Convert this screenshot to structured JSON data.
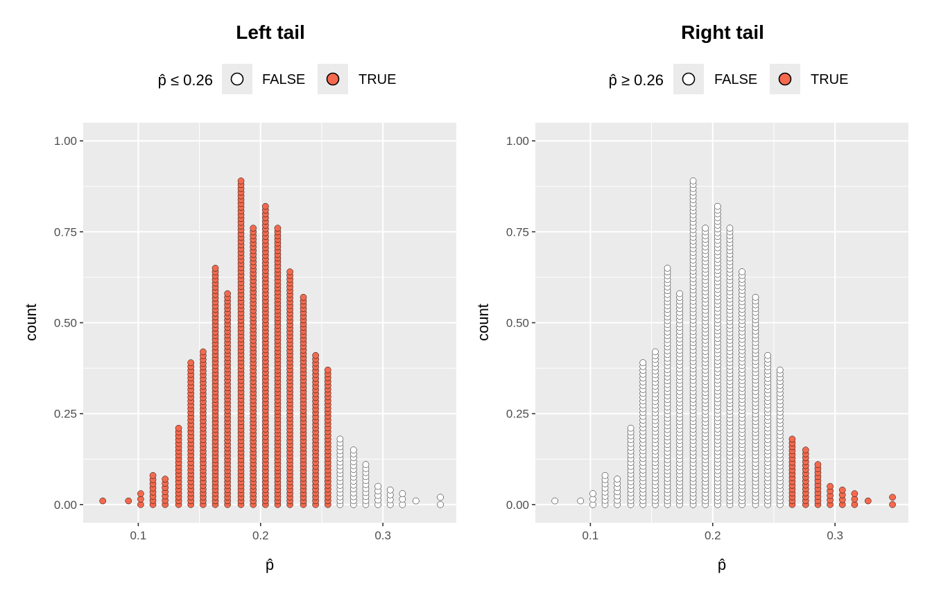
{
  "chart_data": [
    {
      "type": "scatter",
      "subtype": "dotplot",
      "title": "Left tail",
      "xlabel": "p̂",
      "ylabel": "count",
      "xlim": [
        0.055,
        0.36
      ],
      "ylim": [
        -0.05,
        1.05
      ],
      "x_ticks": [
        0.1,
        0.2,
        0.3
      ],
      "x_tick_labels": [
        "0.1",
        "0.2",
        "0.3"
      ],
      "y_ticks": [
        0.0,
        0.25,
        0.5,
        0.75,
        1.0
      ],
      "y_tick_labels": [
        "0.00",
        "0.25",
        "0.50",
        "0.75",
        "1.00"
      ],
      "grid": true,
      "legend": {
        "position": "top",
        "title": "p̂ ≤ 0.26",
        "entries": [
          {
            "label": "FALSE",
            "color": "#ffffff"
          },
          {
            "label": "TRUE",
            "color": "#f46a4e"
          }
        ]
      },
      "highlight_rule": "x <= 0.26",
      "dot_step": 0.0102,
      "stacks": [
        {
          "x": 0.071,
          "height": 0.01
        },
        {
          "x": 0.092,
          "height": 0.01
        },
        {
          "x": 0.102,
          "height": 0.03
        },
        {
          "x": 0.112,
          "height": 0.08
        },
        {
          "x": 0.122,
          "height": 0.07
        },
        {
          "x": 0.133,
          "height": 0.21
        },
        {
          "x": 0.143,
          "height": 0.39
        },
        {
          "x": 0.153,
          "height": 0.42
        },
        {
          "x": 0.163,
          "height": 0.65
        },
        {
          "x": 0.173,
          "height": 0.58
        },
        {
          "x": 0.184,
          "height": 0.89
        },
        {
          "x": 0.194,
          "height": 0.76
        },
        {
          "x": 0.204,
          "height": 0.82
        },
        {
          "x": 0.214,
          "height": 0.76
        },
        {
          "x": 0.224,
          "height": 0.64
        },
        {
          "x": 0.235,
          "height": 0.57
        },
        {
          "x": 0.245,
          "height": 0.41
        },
        {
          "x": 0.255,
          "height": 0.37
        },
        {
          "x": 0.265,
          "height": 0.18
        },
        {
          "x": 0.276,
          "height": 0.15
        },
        {
          "x": 0.286,
          "height": 0.11
        },
        {
          "x": 0.296,
          "height": 0.05
        },
        {
          "x": 0.306,
          "height": 0.04
        },
        {
          "x": 0.316,
          "height": 0.03
        },
        {
          "x": 0.327,
          "height": 0.01
        },
        {
          "x": 0.347,
          "height": 0.02
        }
      ]
    },
    {
      "type": "scatter",
      "subtype": "dotplot",
      "title": "Right tail",
      "xlabel": "p̂",
      "ylabel": "count",
      "xlim": [
        0.055,
        0.36
      ],
      "ylim": [
        -0.05,
        1.05
      ],
      "x_ticks": [
        0.1,
        0.2,
        0.3
      ],
      "x_tick_labels": [
        "0.1",
        "0.2",
        "0.3"
      ],
      "y_ticks": [
        0.0,
        0.25,
        0.5,
        0.75,
        1.0
      ],
      "y_tick_labels": [
        "0.00",
        "0.25",
        "0.50",
        "0.75",
        "1.00"
      ],
      "grid": true,
      "legend": {
        "position": "top",
        "title": "p̂ ≥ 0.26",
        "entries": [
          {
            "label": "FALSE",
            "color": "#ffffff"
          },
          {
            "label": "TRUE",
            "color": "#f46a4e"
          }
        ]
      },
      "highlight_rule": "x >= 0.26",
      "dot_step": 0.0102,
      "stacks": [
        {
          "x": 0.071,
          "height": 0.01
        },
        {
          "x": 0.092,
          "height": 0.01
        },
        {
          "x": 0.102,
          "height": 0.03
        },
        {
          "x": 0.112,
          "height": 0.08
        },
        {
          "x": 0.122,
          "height": 0.07
        },
        {
          "x": 0.133,
          "height": 0.21
        },
        {
          "x": 0.143,
          "height": 0.39
        },
        {
          "x": 0.153,
          "height": 0.42
        },
        {
          "x": 0.163,
          "height": 0.65
        },
        {
          "x": 0.173,
          "height": 0.58
        },
        {
          "x": 0.184,
          "height": 0.89
        },
        {
          "x": 0.194,
          "height": 0.76
        },
        {
          "x": 0.204,
          "height": 0.82
        },
        {
          "x": 0.214,
          "height": 0.76
        },
        {
          "x": 0.224,
          "height": 0.64
        },
        {
          "x": 0.235,
          "height": 0.57
        },
        {
          "x": 0.245,
          "height": 0.41
        },
        {
          "x": 0.255,
          "height": 0.37
        },
        {
          "x": 0.265,
          "height": 0.18
        },
        {
          "x": 0.276,
          "height": 0.15
        },
        {
          "x": 0.286,
          "height": 0.11
        },
        {
          "x": 0.296,
          "height": 0.05
        },
        {
          "x": 0.306,
          "height": 0.04
        },
        {
          "x": 0.316,
          "height": 0.03
        },
        {
          "x": 0.327,
          "height": 0.01
        },
        {
          "x": 0.347,
          "height": 0.02
        }
      ]
    }
  ]
}
